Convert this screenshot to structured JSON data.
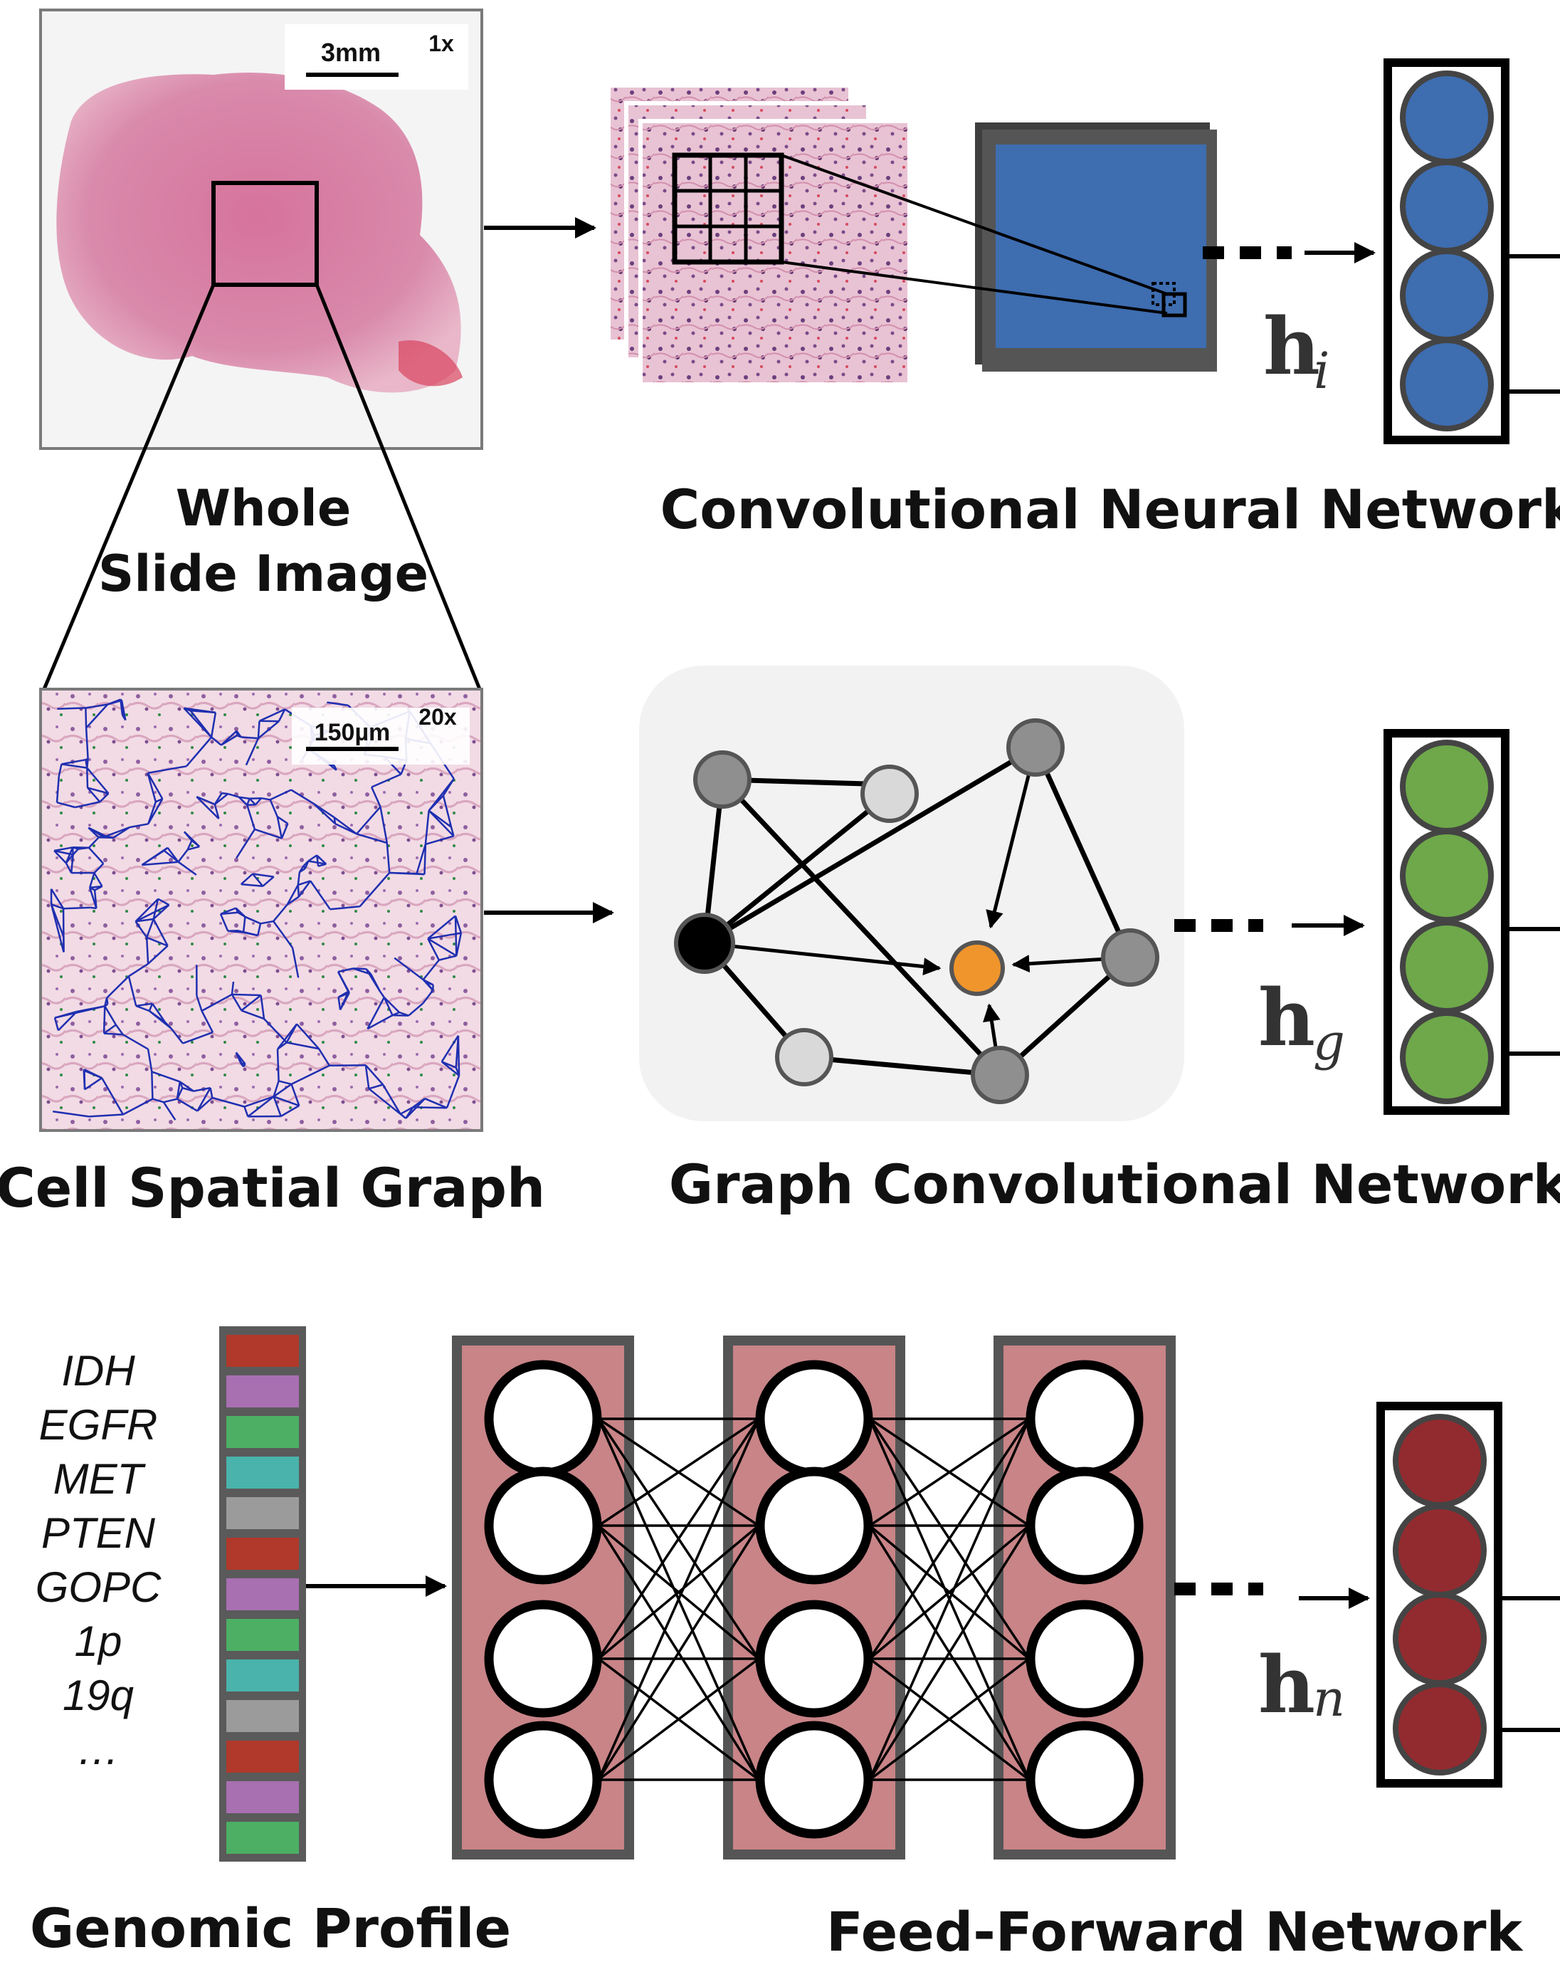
{
  "panels": {
    "wsi": {
      "scale_bar": "3mm",
      "magnification": "1x",
      "label_line1": "Whole",
      "label_line2": "Slide Image"
    },
    "cnn": {
      "label": "Convolutional Neural Network",
      "feature_symbol": "h",
      "feature_subscript": "i",
      "vector_color": "#3e6db0"
    },
    "graph_image": {
      "scale_bar": "150µm",
      "magnification": "20x",
      "label": "Cell Spatial Graph"
    },
    "gcn": {
      "label": "Graph Convolutional Network",
      "feature_symbol": "h",
      "feature_subscript": "g",
      "vector_color": "#6ea84a",
      "highlight_node_color": "#f0952c"
    },
    "genomic": {
      "label": "Genomic Profile",
      "genes": [
        "IDH",
        "EGFR",
        "MET",
        "PTEN",
        "GOPC",
        "1p",
        "19q",
        "…"
      ],
      "segment_colors": [
        "#b0392b",
        "#a86fb1",
        "#4caf63",
        "#4ab3ab",
        "#9b9b9b",
        "#b0392b",
        "#a86fb1",
        "#4caf63",
        "#4ab3ab",
        "#9b9b9b",
        "#b0392b",
        "#a86fb1",
        "#4caf63"
      ]
    },
    "ffn": {
      "label": "Feed-Forward Network",
      "feature_symbol": "h",
      "feature_subscript": "n",
      "vector_color": "#922b2f",
      "layer_color": "#c88487"
    }
  }
}
